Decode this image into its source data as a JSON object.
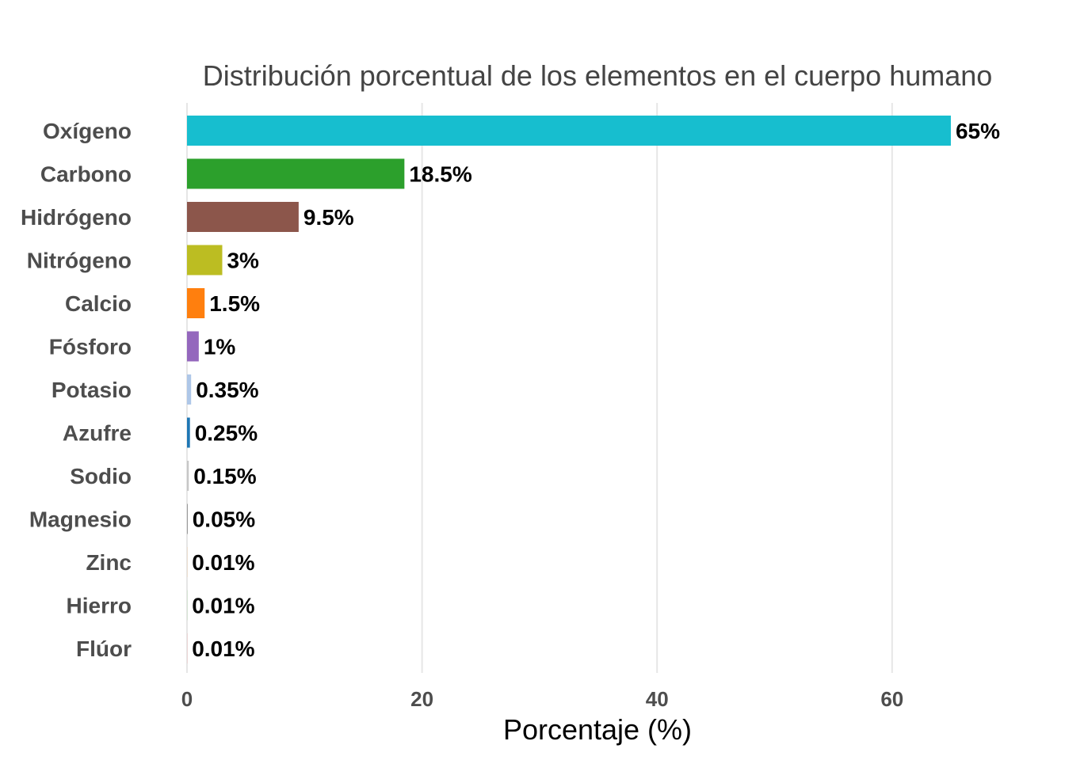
{
  "chart_data": {
    "type": "bar",
    "orientation": "horizontal",
    "title": "Distribución porcentual de los elementos en el cuerpo humano",
    "xlabel": "Porcentaje (%)",
    "ylabel": "",
    "xlim": [
      0,
      70
    ],
    "xticks": [
      0,
      20,
      40,
      60
    ],
    "grid": "vertical-major",
    "legend": "none",
    "categories": [
      "Oxígeno",
      "Carbono",
      "Hidrógeno",
      "Nitrógeno",
      "Calcio",
      "Fósforo",
      "Potasio",
      "Azufre",
      "Sodio",
      "Magnesio",
      "Zinc",
      "Hierro",
      "Flúor"
    ],
    "values": [
      65,
      18.5,
      9.5,
      3,
      1.5,
      1,
      0.35,
      0.25,
      0.15,
      0.05,
      0.01,
      0.01,
      0.01
    ],
    "data_labels": [
      "65%",
      "18.5%",
      "9.5%",
      "3%",
      "1.5%",
      "1%",
      "0.35%",
      "0.25%",
      "0.15%",
      "0.05%",
      "0.01%",
      "0.01%",
      "0.01%"
    ],
    "colors": [
      "#17becf",
      "#2ca02c",
      "#8c564b",
      "#bcbd22",
      "#ff7f0e",
      "#9467bd",
      "#aec7e8",
      "#1f77b4",
      "#c7c7c7",
      "#7f7f7f",
      "#ffbb78",
      "#98df8a",
      "#ff9896"
    ]
  }
}
